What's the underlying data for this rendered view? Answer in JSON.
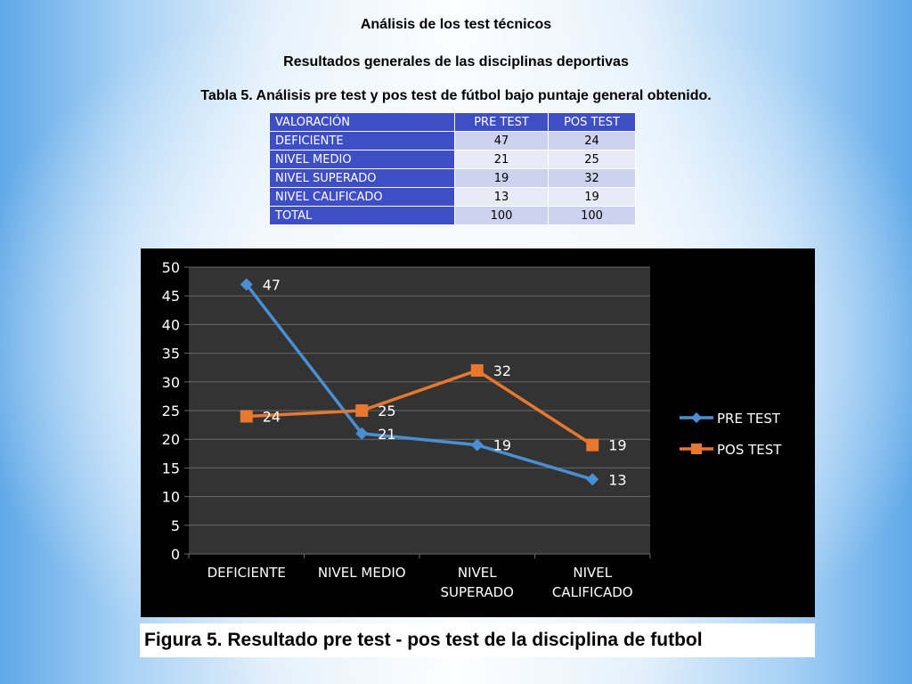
{
  "headings": {
    "line1": "Análisis de los test técnicos",
    "line2": "Resultados generales de las disciplinas deportivas",
    "line3": "Tabla 5. Análisis pre test y pos test de fútbol bajo puntaje general obtenido."
  },
  "table": {
    "headers": [
      "VALORACIÓN",
      "PRE TEST",
      "POS TEST"
    ],
    "rows": [
      [
        "DEFICIENTE",
        "47",
        "24"
      ],
      [
        "NIVEL MEDIO",
        "21",
        "25"
      ],
      [
        "NIVEL SUPERADO",
        "19",
        "32"
      ],
      [
        "NIVEL CALIFICADO",
        "13",
        "19"
      ],
      [
        "TOTAL",
        "100",
        "100"
      ]
    ]
  },
  "chart_data": {
    "type": "line",
    "categories": [
      [
        "DEFICIENTE"
      ],
      [
        "NIVEL MEDIO"
      ],
      [
        "NIVEL",
        "SUPERADO"
      ],
      [
        "NIVEL",
        "CALIFICADO"
      ]
    ],
    "series": [
      {
        "name": "PRE TEST",
        "values": [
          47,
          21,
          19,
          13
        ],
        "color": "#4a8fd4",
        "marker": "diamond"
      },
      {
        "name": "POS TEST",
        "values": [
          24,
          25,
          32,
          19
        ],
        "color": "#e8782e",
        "marker": "square"
      }
    ],
    "ylim": [
      0,
      50
    ],
    "yticks": [
      0,
      5,
      10,
      15,
      20,
      25,
      30,
      35,
      40,
      45,
      50
    ],
    "grid": true,
    "legend": "right",
    "data_labels": true,
    "colors": {
      "plot_bg": "#333333",
      "frame_bg": "#000000",
      "grid": "#6a6a6a",
      "text": "#ffffff"
    }
  },
  "caption": "Figura 5. Resultado  pre test - pos test de la disciplina  de futbol"
}
